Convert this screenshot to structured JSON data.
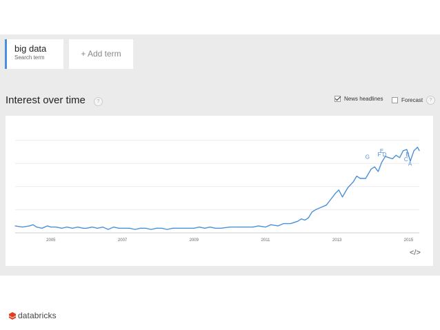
{
  "search": {
    "term": "big data",
    "term_sublabel": "Search term",
    "add_term": "+ Add term"
  },
  "section": {
    "title": "Interest over time",
    "help": "?"
  },
  "options": {
    "news_headlines": {
      "label": "News headlines",
      "checked": true
    },
    "forecast": {
      "label": "Forecast",
      "checked": false
    },
    "help": "?"
  },
  "embed_icon": "</>",
  "footer": {
    "logo_text": "databricks",
    "logo_icon": "databricks-logo-icon",
    "logo_color": "#e2401f"
  },
  "colors": {
    "line": "#4a90d9",
    "accent": "#4a90d9"
  },
  "chart_data": {
    "type": "line",
    "x_ticks": [
      "2005",
      "2007",
      "2009",
      "2011",
      "2013",
      "2015"
    ],
    "x_range": [
      2004.0,
      2015.3
    ],
    "y_range": [
      0,
      100
    ],
    "grid": true,
    "series": [
      {
        "values": [
          [
            2004.0,
            6
          ],
          [
            2004.2,
            5
          ],
          [
            2004.4,
            6
          ],
          [
            2004.5,
            7
          ],
          [
            2004.6,
            5
          ],
          [
            2004.75,
            4
          ],
          [
            2004.9,
            6
          ],
          [
            2005.0,
            5
          ],
          [
            2005.15,
            5
          ],
          [
            2005.3,
            4
          ],
          [
            2005.45,
            5
          ],
          [
            2005.6,
            4
          ],
          [
            2005.75,
            5
          ],
          [
            2005.9,
            4
          ],
          [
            2006.0,
            4
          ],
          [
            2006.15,
            5
          ],
          [
            2006.3,
            4
          ],
          [
            2006.45,
            5
          ],
          [
            2006.6,
            3
          ],
          [
            2006.75,
            5
          ],
          [
            2006.9,
            4
          ],
          [
            2007.05,
            4
          ],
          [
            2007.2,
            4
          ],
          [
            2007.35,
            3
          ],
          [
            2007.5,
            4
          ],
          [
            2007.65,
            4
          ],
          [
            2007.8,
            3
          ],
          [
            2007.95,
            4
          ],
          [
            2008.1,
            4
          ],
          [
            2008.25,
            3
          ],
          [
            2008.4,
            4
          ],
          [
            2008.55,
            4
          ],
          [
            2008.7,
            4
          ],
          [
            2008.85,
            4
          ],
          [
            2009.0,
            4
          ],
          [
            2009.15,
            5
          ],
          [
            2009.3,
            4
          ],
          [
            2009.45,
            5
          ],
          [
            2009.6,
            4
          ],
          [
            2009.75,
            4
          ],
          [
            2010.0,
            5
          ],
          [
            2010.25,
            5
          ],
          [
            2010.5,
            5
          ],
          [
            2010.65,
            5
          ],
          [
            2010.8,
            6
          ],
          [
            2011.0,
            5
          ],
          [
            2011.15,
            7
          ],
          [
            2011.35,
            6
          ],
          [
            2011.5,
            8
          ],
          [
            2011.7,
            8
          ],
          [
            2011.9,
            10
          ],
          [
            2012.0,
            12
          ],
          [
            2012.1,
            11
          ],
          [
            2012.2,
            13
          ],
          [
            2012.3,
            18
          ],
          [
            2012.4,
            20
          ],
          [
            2012.55,
            22
          ],
          [
            2012.7,
            24
          ],
          [
            2012.8,
            28
          ],
          [
            2012.95,
            34
          ],
          [
            2013.05,
            37
          ],
          [
            2013.15,
            31
          ],
          [
            2013.3,
            39
          ],
          [
            2013.45,
            44
          ],
          [
            2013.55,
            49
          ],
          [
            2013.65,
            47
          ],
          [
            2013.8,
            47
          ],
          [
            2013.95,
            55
          ],
          [
            2014.05,
            57
          ],
          [
            2014.15,
            53
          ],
          [
            2014.25,
            61
          ],
          [
            2014.35,
            66
          ],
          [
            2014.45,
            65
          ],
          [
            2014.55,
            64
          ],
          [
            2014.65,
            67
          ],
          [
            2014.75,
            65
          ],
          [
            2014.85,
            71
          ],
          [
            2014.95,
            72
          ],
          [
            2015.05,
            62
          ],
          [
            2015.15,
            71
          ],
          [
            2015.25,
            74
          ],
          [
            2015.3,
            71
          ]
        ]
      }
    ],
    "annotations": [
      {
        "label": "G",
        "x": 2013.85,
        "y": 64
      },
      {
        "label": "F",
        "x": 2014.18,
        "y": 66
      },
      {
        "label": "E",
        "x": 2014.25,
        "y": 69
      },
      {
        "label": "D",
        "x": 2014.33,
        "y": 66
      },
      {
        "label": "B",
        "x": 2014.97,
        "y": 66
      },
      {
        "label": "C",
        "x": 2014.93,
        "y": 62
      },
      {
        "label": "A",
        "x": 2015.04,
        "y": 58
      }
    ]
  }
}
